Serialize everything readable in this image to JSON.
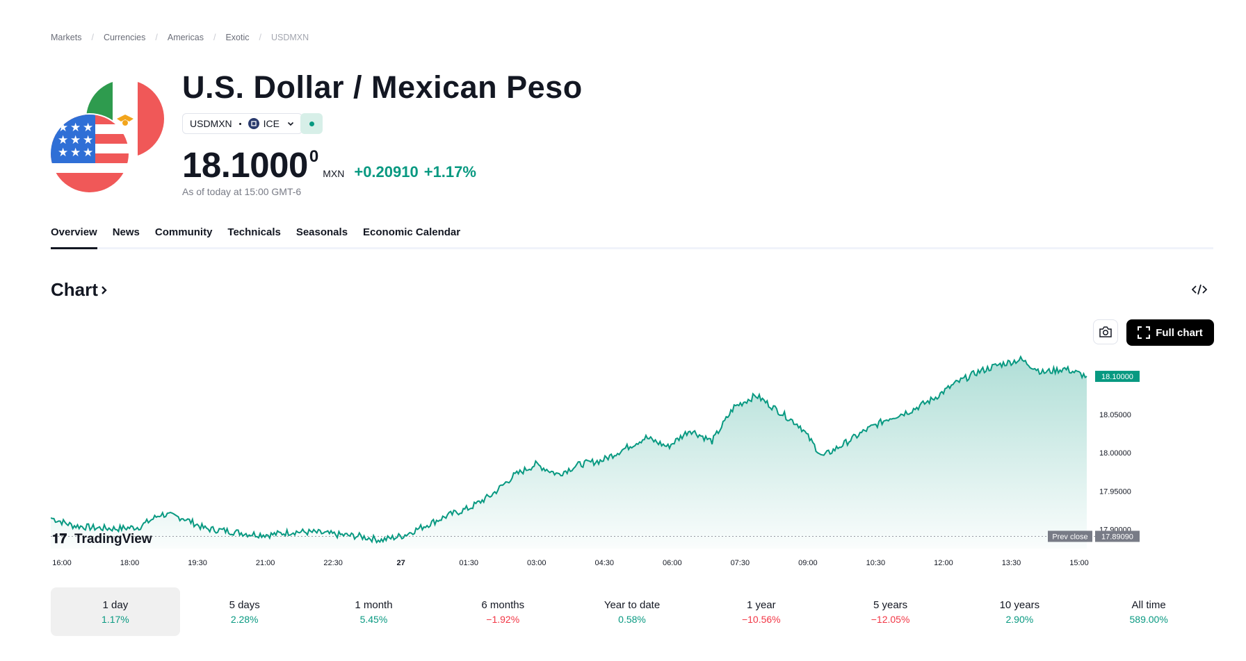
{
  "breadcrumb": [
    "Markets",
    "Currencies",
    "Americas",
    "Exotic",
    "USDMXN"
  ],
  "header": {
    "title": "U.S. Dollar / Mexican Peso",
    "symbol": "USDMXN",
    "exchange": "ICE",
    "price": "18.1000",
    "price_sup": "0",
    "currency": "MXN",
    "change_abs": "+0.20910",
    "change_pct": "+1.17%",
    "as_of": "As of today at 15:00 GMT-6",
    "status": "market-open"
  },
  "tabs": [
    "Overview",
    "News",
    "Community",
    "Technicals",
    "Seasonals",
    "Economic Calendar"
  ],
  "chart_section": {
    "heading": "Chart",
    "full_chart_label": "Full chart",
    "watermark": "TradingView"
  },
  "chart_data": {
    "type": "area",
    "title": "USDMXN",
    "xlabel": "",
    "ylabel": "",
    "x_ticks": [
      "16:00",
      "18:00",
      "19:30",
      "21:00",
      "22:30",
      "27",
      "01:30",
      "03:00",
      "04:30",
      "06:00",
      "07:30",
      "09:00",
      "10:30",
      "12:00",
      "13:30",
      "15:00"
    ],
    "y_ticks": [
      "18.05000",
      "18.00000",
      "17.95000",
      "17.90000"
    ],
    "ylim": [
      17.875,
      18.12
    ],
    "last_price_label": "18.10000",
    "prev_close_label": "Prev close",
    "prev_close": "17.89090",
    "series": [
      {
        "name": "USDMXN",
        "points": [
          [
            "16:00",
            17.915
          ],
          [
            "16:30",
            17.905
          ],
          [
            "17:00",
            17.902
          ],
          [
            "17:30",
            17.901
          ],
          [
            "18:00",
            17.903
          ],
          [
            "18:30",
            17.92
          ],
          [
            "19:00",
            17.915
          ],
          [
            "19:30",
            17.901
          ],
          [
            "20:00",
            17.898
          ],
          [
            "20:30",
            17.894
          ],
          [
            "21:00",
            17.893
          ],
          [
            "21:30",
            17.897
          ],
          [
            "22:00",
            17.896
          ],
          [
            "22:30",
            17.893
          ],
          [
            "23:00",
            17.891
          ],
          [
            "23:30",
            17.886
          ],
          [
            "00:00",
            17.892
          ],
          [
            "00:30",
            17.905
          ],
          [
            "01:00",
            17.918
          ],
          [
            "01:30",
            17.928
          ],
          [
            "02:00",
            17.945
          ],
          [
            "02:30",
            17.97
          ],
          [
            "03:00",
            17.985
          ],
          [
            "03:30",
            17.972
          ],
          [
            "04:00",
            17.985
          ],
          [
            "04:30",
            17.99
          ],
          [
            "05:00",
            18.005
          ],
          [
            "05:30",
            18.02
          ],
          [
            "06:00",
            18.008
          ],
          [
            "06:30",
            18.03
          ],
          [
            "07:00",
            18.015
          ],
          [
            "07:30",
            18.06
          ],
          [
            "08:00",
            18.075
          ],
          [
            "08:30",
            18.055
          ],
          [
            "09:00",
            18.035
          ],
          [
            "09:15",
            17.995
          ],
          [
            "09:30",
            18.012
          ],
          [
            "10:00",
            18.03
          ],
          [
            "10:30",
            18.045
          ],
          [
            "11:00",
            18.055
          ],
          [
            "11:30",
            18.07
          ],
          [
            "12:00",
            18.09
          ],
          [
            "12:30",
            18.105
          ],
          [
            "13:00",
            18.115
          ],
          [
            "13:30",
            18.122
          ],
          [
            "14:00",
            18.105
          ],
          [
            "14:30",
            18.11
          ],
          [
            "15:00",
            18.1
          ]
        ]
      }
    ]
  },
  "periods": [
    {
      "label": "1 day",
      "value": "1.17%",
      "dir": "pos"
    },
    {
      "label": "5 days",
      "value": "2.28%",
      "dir": "pos"
    },
    {
      "label": "1 month",
      "value": "5.45%",
      "dir": "pos"
    },
    {
      "label": "6 months",
      "value": "−1.92%",
      "dir": "neg"
    },
    {
      "label": "Year to date",
      "value": "0.58%",
      "dir": "pos"
    },
    {
      "label": "1 year",
      "value": "−10.56%",
      "dir": "neg"
    },
    {
      "label": "5 years",
      "value": "−12.05%",
      "dir": "neg"
    },
    {
      "label": "10 years",
      "value": "2.90%",
      "dir": "pos"
    },
    {
      "label": "All time",
      "value": "589.00%",
      "dir": "pos"
    }
  ],
  "colors": {
    "accent": "#089981",
    "negative": "#f23645",
    "text": "#131722"
  }
}
